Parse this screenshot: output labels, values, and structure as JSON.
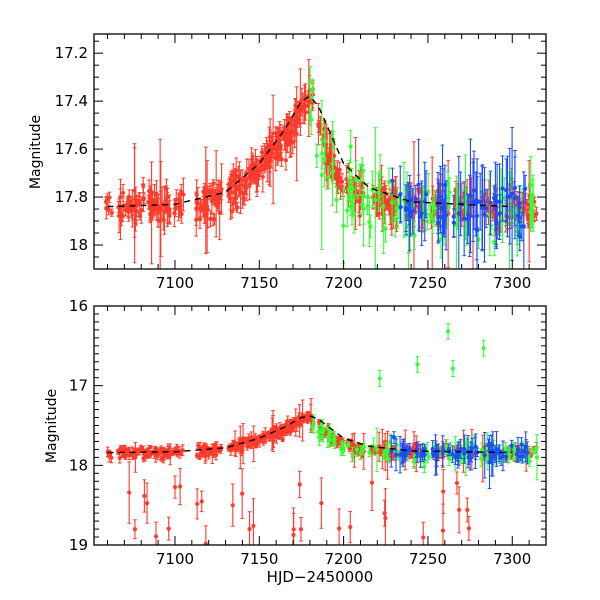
{
  "chart_data": [
    {
      "type": "scatter",
      "panel": "top",
      "title": "",
      "xlabel": "",
      "ylabel": "Magnitude",
      "xlim": [
        7052,
        7320
      ],
      "ylim": [
        18.1,
        17.12
      ],
      "y_inverted": true,
      "xticks": [
        7100,
        7150,
        7200,
        7250,
        7300
      ],
      "xtick_labels": [
        "7100",
        "7150",
        "7200",
        "7250",
        "7300"
      ],
      "yticks": [
        17.2,
        17.4,
        17.6,
        17.8,
        18.0
      ],
      "ytick_labels": [
        "17.2",
        "17.4",
        "17.6",
        "17.8",
        "18"
      ],
      "model_curve": {
        "style": "dashed",
        "color": "#000000",
        "x": [
          7060,
          7100,
          7130,
          7150,
          7165,
          7175,
          7180,
          7185,
          7190,
          7200,
          7215,
          7240,
          7300
        ],
        "y": [
          17.84,
          17.83,
          17.78,
          17.66,
          17.52,
          17.4,
          17.38,
          17.42,
          17.5,
          17.66,
          17.76,
          17.82,
          17.84
        ]
      },
      "series": [
        {
          "name": "red",
          "color": "#ff3b2b",
          "x_range": [
            7058,
            7315
          ],
          "typical_mag": "17.84 → 17.38 (peak near 7180)",
          "error": "0.02-0.30"
        },
        {
          "name": "green",
          "color": "#33ff33",
          "x_range": [
            7180,
            7315
          ],
          "typical_mag": "17.6-17.95",
          "error": "0.03-0.30"
        },
        {
          "name": "blue",
          "color": "#1a4dff",
          "x_range": [
            7228,
            7310
          ],
          "typical_mag": "17.7-17.9",
          "error": "0.05-0.30"
        }
      ]
    },
    {
      "type": "scatter",
      "panel": "bottom",
      "title": "",
      "xlabel": "HJD−2450000",
      "ylabel": "Magnitude",
      "xlim": [
        7052,
        7320
      ],
      "ylim": [
        19.0,
        16.0
      ],
      "y_inverted": true,
      "xticks": [
        7100,
        7150,
        7200,
        7250,
        7300
      ],
      "xtick_labels": [
        "7100",
        "7150",
        "7200",
        "7250",
        "7300"
      ],
      "yticks": [
        16,
        17,
        18,
        19
      ],
      "ytick_labels": [
        "16",
        "17",
        "18",
        "19"
      ],
      "model_curve": {
        "style": "dashed",
        "color": "#000000",
        "x": [
          7060,
          7100,
          7130,
          7150,
          7165,
          7175,
          7180,
          7185,
          7190,
          7200,
          7215,
          7240,
          7300
        ],
        "y": [
          17.84,
          17.83,
          17.78,
          17.66,
          17.52,
          17.4,
          17.38,
          17.42,
          17.5,
          17.66,
          17.76,
          17.82,
          17.84
        ]
      },
      "series": [
        {
          "name": "red",
          "color": "#ff3b2b",
          "x_range": [
            7058,
            7315
          ],
          "typical_mag": "17.84 → 17.38, outliers to 19",
          "error": "0.02-0.40"
        },
        {
          "name": "green",
          "color": "#33ff33",
          "x_range": [
            7180,
            7315
          ],
          "typical_mag": "17.7-17.95, outliers to 16.1",
          "error": "0.03-0.30"
        },
        {
          "name": "blue",
          "color": "#1a4dff",
          "x_range": [
            7228,
            7310
          ],
          "typical_mag": "17.7-17.9",
          "error": "0.05-0.30"
        }
      ]
    }
  ],
  "colors": {
    "red": "#ff3b2b",
    "green": "#33ff33",
    "blue": "#1a4dff",
    "frame": "#000000"
  }
}
